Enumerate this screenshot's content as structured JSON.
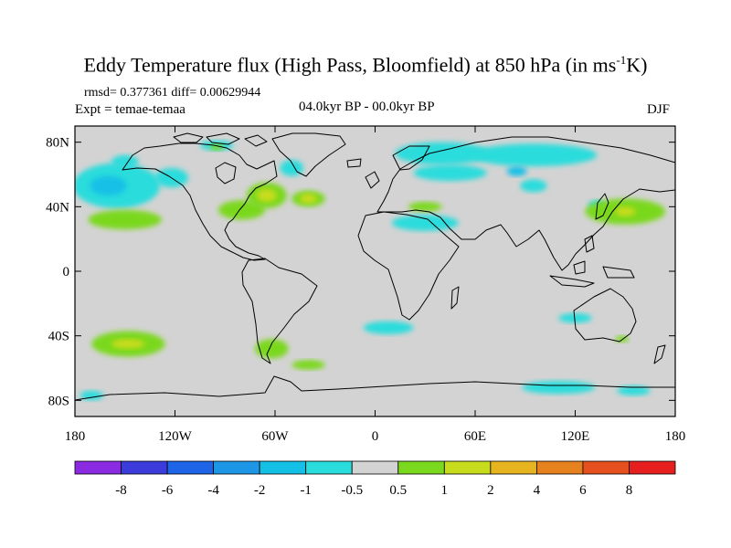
{
  "title": {
    "main": "Eddy Temperature flux (High Pass, Bloomfield) at 850 hPa (in ms",
    "superscript": "-1",
    "tail": "K)"
  },
  "stats": "rmsd= 0.377361 diff= 0.00629944",
  "experiment": "Expt = temae-temaa",
  "period": "04.0kyr BP - 00.0kyr BP",
  "season": "DJF",
  "map": {
    "projection": "cylindrical equidistant",
    "lon_range": [
      -180,
      180
    ],
    "lat_range": [
      -90,
      90
    ],
    "background_color": "#d3d3d3",
    "x_tick_labels": [
      "180",
      "120W",
      "60W",
      "0",
      "60E",
      "120E",
      "180"
    ],
    "y_tick_labels": [
      "80N",
      "40N",
      "0",
      "40S",
      "80S"
    ]
  },
  "colorbar": {
    "levels": [
      "-8",
      "-6",
      "-4",
      "-2",
      "-1",
      "-0.5",
      "0.5",
      "1",
      "2",
      "4",
      "6",
      "8"
    ],
    "colors": [
      "#8a2be2",
      "#3c3cdc",
      "#1e64e6",
      "#1e96e6",
      "#14c0e6",
      "#2adcdc",
      "#d3d3d3",
      "#7ad81e",
      "#c8dc1e",
      "#e6b41e",
      "#e6821e",
      "#e6501e",
      "#e61e1e"
    ]
  },
  "anomaly_regions": [
    {
      "level": "-0.5 to -1",
      "color": "#2adcdc",
      "lon": -155,
      "lat": 53,
      "rlon": 26,
      "rlat": 14
    },
    {
      "level": "-1 to -2",
      "color": "#14c0e6",
      "lon": -160,
      "lat": 53,
      "rlon": 11,
      "rlat": 6
    },
    {
      "level": "-0.5 to -1",
      "color": "#2adcdc",
      "lon": -150,
      "lat": 68,
      "rlon": 8,
      "rlat": 4
    },
    {
      "level": "-0.5 to -1",
      "color": "#2adcdc",
      "lon": -122,
      "lat": 58,
      "rlon": 10,
      "rlat": 6
    },
    {
      "level": "-0.5 to -1",
      "color": "#2adcdc",
      "lon": -95,
      "lat": 78,
      "rlon": 10,
      "rlat": 3
    },
    {
      "level": "-0.5 to -1",
      "color": "#2adcdc",
      "lon": -50,
      "lat": 64,
      "rlon": 7,
      "rlat": 5
    },
    {
      "level": "-0.5 to -1",
      "color": "#2adcdc",
      "lon": 40,
      "lat": 73,
      "rlon": 28,
      "rlat": 7
    },
    {
      "level": "-0.5 to -1",
      "color": "#2adcdc",
      "lon": 95,
      "lat": 72,
      "rlon": 38,
      "rlat": 7
    },
    {
      "level": "-0.5 to -1",
      "color": "#2adcdc",
      "lon": 45,
      "lat": 61,
      "rlon": 22,
      "rlat": 5
    },
    {
      "level": "-1 to -2",
      "color": "#14c0e6",
      "lon": 85,
      "lat": 62,
      "rlon": 6,
      "rlat": 3
    },
    {
      "level": "-0.5 to -1",
      "color": "#2adcdc",
      "lon": 95,
      "lat": 53,
      "rlon": 8,
      "rlat": 4
    },
    {
      "level": "-0.5 to -1",
      "color": "#2adcdc",
      "lon": 30,
      "lat": 30,
      "rlon": 20,
      "rlat": 5
    },
    {
      "level": "-0.5 to -1",
      "color": "#2adcdc",
      "lon": 133,
      "lat": 41,
      "rlon": 5,
      "rlat": 3
    },
    {
      "level": "-0.5 to -1",
      "color": "#2adcdc",
      "lon": 120,
      "lat": -29,
      "rlon": 10,
      "rlat": 3
    },
    {
      "level": "-0.5 to -1",
      "color": "#2adcdc",
      "lon": 8,
      "lat": -35,
      "rlon": 15,
      "rlat": 4
    },
    {
      "level": "-0.5 to -1",
      "color": "#2adcdc",
      "lon": 110,
      "lat": -72,
      "rlon": 22,
      "rlat": 4
    },
    {
      "level": "-0.5 to -1",
      "color": "#2adcdc",
      "lon": 155,
      "lat": -74,
      "rlon": 10,
      "rlat": 3
    },
    {
      "level": "-0.5 to -1",
      "color": "#2adcdc",
      "lon": -170,
      "lat": -77,
      "rlon": 7,
      "rlat": 3
    },
    {
      "level": "0.5 to 1",
      "color": "#7ad81e",
      "lon": -150,
      "lat": 32,
      "rlon": 22,
      "rlat": 6
    },
    {
      "level": "0.5 to 1",
      "color": "#7ad81e",
      "lon": -80,
      "lat": 38,
      "rlon": 14,
      "rlat": 6
    },
    {
      "level": "0.5 to 1",
      "color": "#7ad81e",
      "lon": -65,
      "lat": 47,
      "rlon": 12,
      "rlat": 8
    },
    {
      "level": "1 to 2",
      "color": "#c8dc1e",
      "lon": -65,
      "lat": 47,
      "rlon": 6,
      "rlat": 4
    },
    {
      "level": "0.5 to 1",
      "color": "#7ad81e",
      "lon": -40,
      "lat": 45,
      "rlon": 10,
      "rlat": 5
    },
    {
      "level": "1 to 2",
      "color": "#c8dc1e",
      "lon": -40,
      "lat": 45,
      "rlon": 5,
      "rlat": 3
    },
    {
      "level": "0.5 to 1",
      "color": "#7ad81e",
      "lon": -95,
      "lat": 77,
      "rlon": 4,
      "rlat": 2
    },
    {
      "level": "0.5 to 1",
      "color": "#7ad81e",
      "lon": 30,
      "lat": 40,
      "rlon": 10,
      "rlat": 3
    },
    {
      "level": "0.5 to 1",
      "color": "#7ad81e",
      "lon": 150,
      "lat": 37,
      "rlon": 24,
      "rlat": 8
    },
    {
      "level": "1 to 2",
      "color": "#c8dc1e",
      "lon": 150,
      "lat": 37,
      "rlon": 6,
      "rlat": 3
    },
    {
      "level": "0.5 to 1",
      "color": "#7ad81e",
      "lon": -148,
      "lat": -45,
      "rlon": 22,
      "rlat": 8
    },
    {
      "level": "1 to 2",
      "color": "#c8dc1e",
      "lon": -148,
      "lat": -45,
      "rlon": 10,
      "rlat": 3
    },
    {
      "level": "0.5 to 1",
      "color": "#7ad81e",
      "lon": -62,
      "lat": -48,
      "rlon": 10,
      "rlat": 6
    },
    {
      "level": "0.5 to 1",
      "color": "#7ad81e",
      "lon": -40,
      "lat": -58,
      "rlon": 10,
      "rlat": 3
    },
    {
      "level": "0.5 to 1",
      "color": "#7ad81e",
      "lon": 148,
      "lat": -42,
      "rlon": 4,
      "rlat": 2
    }
  ]
}
